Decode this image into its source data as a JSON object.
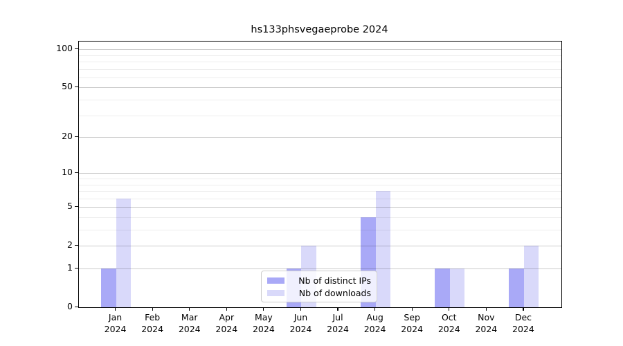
{
  "title": "hs133phsvegaeprobe 2024",
  "chart_data": {
    "type": "bar",
    "title": "hs133phsvegaeprobe 2024",
    "categories": [
      "Jan",
      "Feb",
      "Mar",
      "Apr",
      "May",
      "Jun",
      "Jul",
      "Aug",
      "Sep",
      "Oct",
      "Nov",
      "Dec"
    ],
    "year_label": "2024",
    "series": [
      {
        "name": "Nb of distinct IPs",
        "color": "#a9a9f7",
        "values": [
          1,
          0,
          0,
          0,
          0,
          1,
          0,
          4,
          0,
          1,
          0,
          1
        ]
      },
      {
        "name": "Nb of downloads",
        "color": "#d9d9fa",
        "values": [
          6,
          0,
          0,
          0,
          0,
          2,
          0,
          7,
          0,
          1,
          0,
          2
        ]
      }
    ],
    "y_axis": {
      "scale": "log10(1+v)",
      "tick_labels": [
        0,
        1,
        2,
        5,
        10,
        20,
        50,
        100
      ],
      "minor_gridline_values": [
        3,
        4,
        6,
        7,
        8,
        9,
        30,
        40,
        60,
        70,
        80,
        90
      ],
      "range_top": 116
    },
    "grid": "horizontal",
    "legend": {
      "position": "bottom-center",
      "entries": [
        "Nb of distinct IPs",
        "Nb of downloads"
      ]
    }
  }
}
